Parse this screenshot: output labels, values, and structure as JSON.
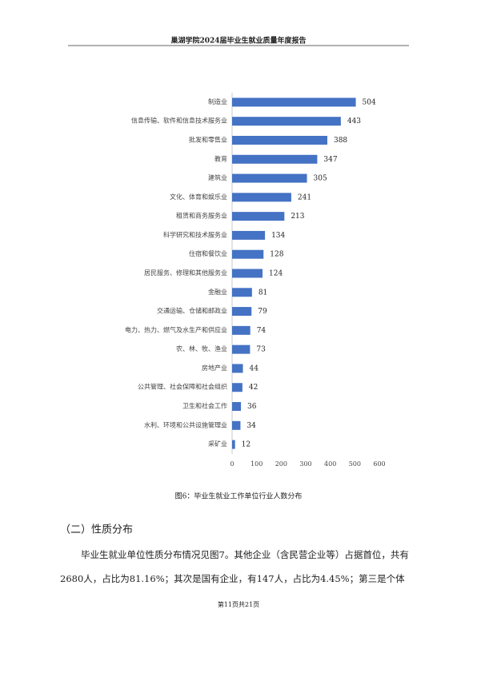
{
  "header": {
    "title": "巢湖学院2024届毕业生就业质量年度报告"
  },
  "chart_data": {
    "type": "bar",
    "orientation": "horizontal",
    "categories": [
      "制造业",
      "信息传输、软件和信息技术服务业",
      "批发和零售业",
      "教育",
      "建筑业",
      "文化、体育和娱乐业",
      "租赁和商务服务业",
      "科学研究和技术服务业",
      "住宿和餐饮业",
      "居民服务、修理和其他服务业",
      "金融业",
      "交通运输、仓储和邮政业",
      "电力、热力、燃气及水生产和供应业",
      "农、林、牧、渔业",
      "房地产业",
      "公共管理、社会保障和社会组织",
      "卫生和社会工作",
      "水利、环境和公共设施管理业",
      "采矿业"
    ],
    "values": [
      504,
      443,
      388,
      347,
      305,
      241,
      213,
      134,
      128,
      124,
      81,
      79,
      74,
      73,
      44,
      42,
      36,
      34,
      12
    ],
    "color": "#4472c4",
    "xlim": [
      0,
      600
    ],
    "xticks": [
      0,
      100,
      200,
      300,
      400,
      500,
      600
    ],
    "grid": false,
    "data_labels": true
  },
  "caption": "图6：毕业生就业工作单位行业人数分布",
  "section_title": "（二）性质分布",
  "paragraph": [
    "毕业生就业单位性质分布情况见图7。其他企业（含民营企业等）占据首位，共有",
    "2680人，占比为81.16%；其次是国有企业，有147人，占比为4.45%；第三是个体"
  ],
  "footer": "第11页共21页"
}
